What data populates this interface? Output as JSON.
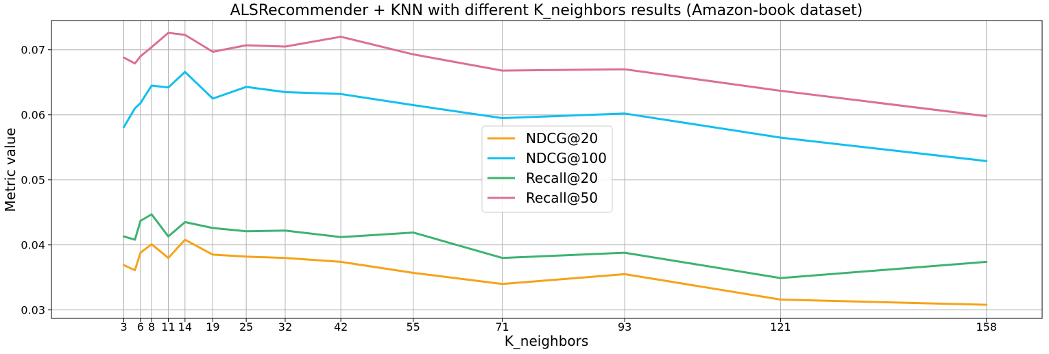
{
  "chart_data": {
    "type": "line",
    "title": "ALSRecommender + KNN with different K_neighbors results (Amazon-book dataset)",
    "xlabel": "K_neighbors",
    "ylabel": "Metric value",
    "x": [
      3,
      5,
      6,
      8,
      11,
      14,
      19,
      25,
      32,
      42,
      55,
      71,
      93,
      121,
      158
    ],
    "xticks": [
      3,
      6,
      8,
      11,
      14,
      19,
      25,
      32,
      42,
      55,
      71,
      93,
      121,
      158
    ],
    "yticks": [
      "0.03",
      "0.04",
      "0.05",
      "0.06",
      "0.07"
    ],
    "xlim": [
      -10,
      168
    ],
    "ylim": [
      0.0287,
      0.0745
    ],
    "grid": true,
    "legend_position": "center",
    "series": [
      {
        "name": "NDCG@20",
        "color": "#f5a31a",
        "values": [
          0.0369,
          0.0361,
          0.0388,
          0.0401,
          0.038,
          0.0408,
          0.0385,
          0.0382,
          0.038,
          0.0374,
          0.0357,
          0.034,
          0.0355,
          0.0316,
          0.0308
        ]
      },
      {
        "name": "NDCG@100",
        "color": "#12bfef",
        "values": [
          0.0581,
          0.061,
          0.0618,
          0.0645,
          0.0642,
          0.0666,
          0.0625,
          0.0643,
          0.0635,
          0.0632,
          0.0615,
          0.0595,
          0.0602,
          0.0565,
          0.0529
        ]
      },
      {
        "name": "Recall@20",
        "color": "#3cb371",
        "values": [
          0.0413,
          0.0408,
          0.0437,
          0.0447,
          0.0413,
          0.0435,
          0.0426,
          0.0421,
          0.0422,
          0.0412,
          0.0419,
          0.038,
          0.0388,
          0.0349,
          0.0374
        ]
      },
      {
        "name": "Recall@50",
        "color": "#db7093",
        "values": [
          0.0688,
          0.0679,
          0.069,
          0.0704,
          0.0726,
          0.0723,
          0.0697,
          0.0707,
          0.0705,
          0.072,
          0.0693,
          0.0668,
          0.067,
          0.0637,
          0.0598
        ]
      }
    ]
  }
}
